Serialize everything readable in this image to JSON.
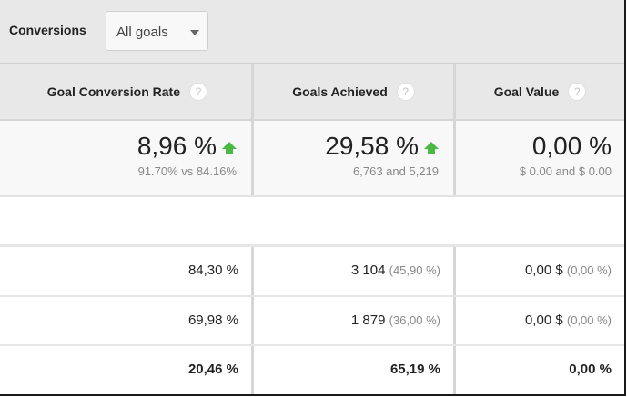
{
  "toolbar": {
    "label": "Conversions",
    "goal_select": {
      "value": "All goals",
      "icon": "caret-down-icon"
    }
  },
  "columns": [
    {
      "label": "Goal Conversion Rate",
      "help_icon": "?"
    },
    {
      "label": "Goals Achieved",
      "help_icon": "?"
    },
    {
      "label": "Goal Value",
      "help_icon": "?"
    }
  ],
  "summary": [
    {
      "value": "8,96 %",
      "trend": "up",
      "detail": "91.70% vs 84.16%"
    },
    {
      "value": "29,58 %",
      "trend": "up",
      "detail": "6,763 and 5,219"
    },
    {
      "value": "0,00 %",
      "trend": "none",
      "detail": "$ 0.00 and $ 0.00"
    }
  ],
  "rows": [
    {
      "rate": "84,30 %",
      "achieved": "3 104",
      "achieved_pct": "(45,90 %)",
      "value": "0,00 $",
      "value_pct": "(0,00 %)"
    },
    {
      "rate": "69,98 %",
      "achieved": "1 879",
      "achieved_pct": "(36,00 %)",
      "value": "0,00 $",
      "value_pct": "(0,00 %)"
    }
  ],
  "totals": {
    "rate": "20,46 %",
    "achieved": "65,19 %",
    "value": "0,00 %"
  },
  "colors": {
    "trend_up": "#4cb944",
    "header_bg": "#e8e8e8",
    "summary_bg": "#f8f8f8"
  }
}
